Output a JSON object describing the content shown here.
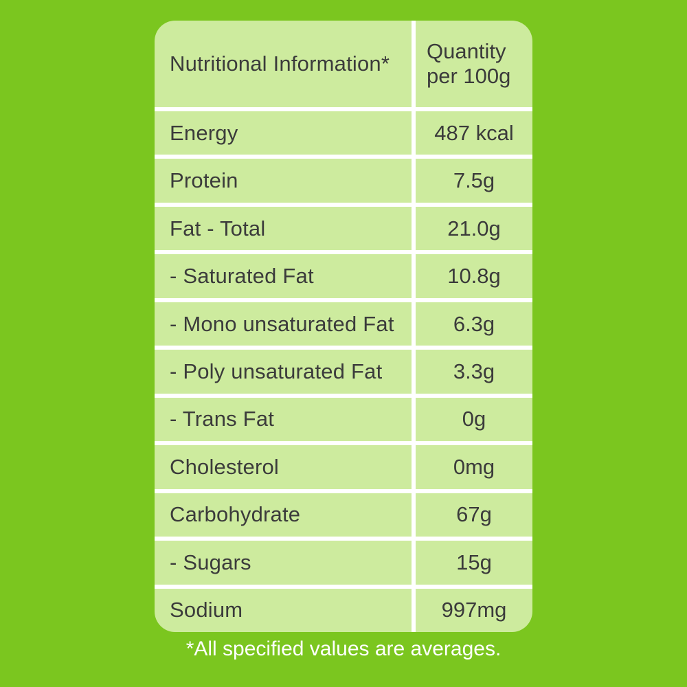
{
  "colors": {
    "background": "#7bc61f",
    "panel": "#cdeb9e",
    "grid_line": "#ffffff",
    "text": "#3b3b3b",
    "footnote_text": "#ffffff"
  },
  "table": {
    "header": {
      "col1": "Nutritional Information*",
      "col2": "Quantity per 100g"
    },
    "rows": [
      {
        "label": "Energy",
        "value": "487 kcal"
      },
      {
        "label": "Protein",
        "value": "7.5g"
      },
      {
        "label": "Fat - Total",
        "value": "21.0g"
      },
      {
        "label": "- Saturated Fat",
        "value": "10.8g"
      },
      {
        "label": "- Mono unsaturated Fat",
        "value": "6.3g"
      },
      {
        "label": "- Poly unsaturated Fat",
        "value": "3.3g"
      },
      {
        "label": "- Trans Fat",
        "value": "0g"
      },
      {
        "label": "Cholesterol",
        "value": "0mg"
      },
      {
        "label": "Carbohydrate",
        "value": "67g"
      },
      {
        "label": "- Sugars",
        "value": "15g"
      },
      {
        "label": "Sodium",
        "value": "997mg"
      }
    ]
  },
  "footnote": "*All specified values are averages."
}
